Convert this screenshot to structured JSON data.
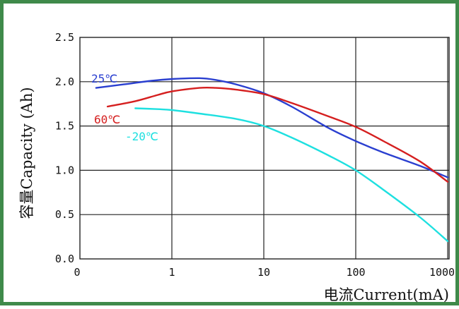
{
  "chart_data": {
    "type": "line",
    "title": "",
    "xlabel": "电流Current(mA)",
    "ylabel": "容量Capacity (Ah)",
    "x_scale": "log",
    "x_ticks": [
      0,
      1,
      10,
      100,
      1000
    ],
    "x_tick_labels": [
      "0",
      "1",
      "10",
      "100",
      "1000"
    ],
    "y_ticks": [
      0.0,
      0.5,
      1.0,
      1.5,
      2.0,
      2.5
    ],
    "y_tick_labels": [
      "0.0",
      "0.5",
      "1.0",
      "1.5",
      "2.0",
      "2.5"
    ],
    "ylim": [
      0,
      2.5
    ],
    "xlim": [
      0,
      1000
    ],
    "grid": true,
    "series": [
      {
        "name": "25℃",
        "color": "#2a3fd0",
        "x": [
          0.15,
          0.3,
          0.6,
          1,
          2,
          3,
          5,
          10,
          20,
          50,
          100,
          200,
          500,
          1000
        ],
        "y": [
          1.93,
          1.97,
          2.01,
          2.03,
          2.04,
          2.02,
          1.97,
          1.87,
          1.72,
          1.48,
          1.33,
          1.2,
          1.05,
          0.92
        ]
      },
      {
        "name": "60℃",
        "color": "#d51f1f",
        "x": [
          0.2,
          0.4,
          0.7,
          1,
          2,
          3,
          5,
          10,
          20,
          50,
          100,
          200,
          500,
          1000
        ],
        "y": [
          1.72,
          1.78,
          1.85,
          1.89,
          1.93,
          1.93,
          1.91,
          1.86,
          1.76,
          1.61,
          1.49,
          1.33,
          1.1,
          0.87
        ]
      },
      {
        "name": "-20℃",
        "color": "#1ee0e0",
        "x": [
          0.4,
          0.7,
          1,
          2,
          5,
          10,
          20,
          50,
          100,
          200,
          500,
          1000
        ],
        "y": [
          1.7,
          1.69,
          1.68,
          1.64,
          1.58,
          1.5,
          1.37,
          1.17,
          1.0,
          0.78,
          0.47,
          0.2
        ]
      }
    ]
  }
}
